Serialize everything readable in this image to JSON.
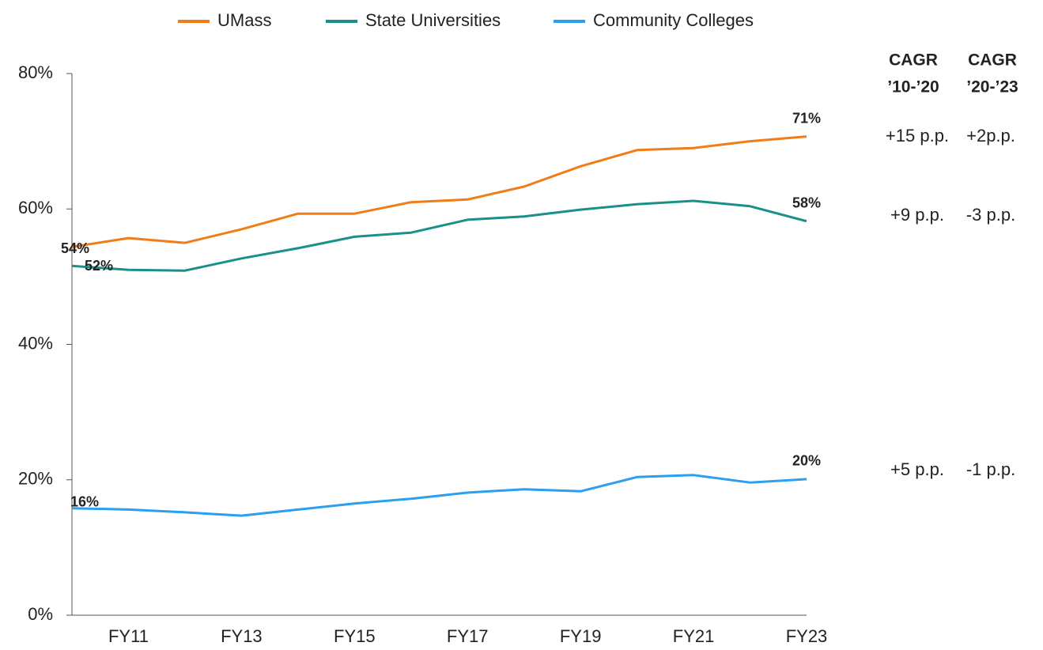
{
  "chart_data": {
    "type": "line",
    "categories": [
      null,
      "FY11",
      null,
      "FY13",
      null,
      "FY15",
      null,
      "FY17",
      null,
      "FY19",
      null,
      "FY21",
      null,
      "FY23"
    ],
    "series": [
      {
        "name": "UMass",
        "color": "#f07d18",
        "values": [
          54.4,
          55.7,
          55.0,
          57.0,
          59.3,
          59.3,
          61.0,
          61.4,
          63.3,
          66.3,
          68.7,
          69.0,
          70.0,
          70.7
        ],
        "value_labels": [
          "54%",
          null,
          null,
          null,
          null,
          null,
          null,
          null,
          null,
          null,
          null,
          null,
          null,
          "71%"
        ]
      },
      {
        "name": "State Universities",
        "color": "#1a9088",
        "values": [
          51.6,
          51.0,
          50.9,
          52.7,
          54.2,
          55.9,
          56.5,
          58.4,
          58.9,
          59.9,
          60.7,
          61.2,
          60.4,
          58.2
        ],
        "value_labels": [
          "52%",
          null,
          null,
          null,
          null,
          null,
          null,
          null,
          null,
          null,
          null,
          null,
          null,
          "58%"
        ]
      },
      {
        "name": "Community Colleges",
        "color": "#2b9ff0",
        "values": [
          15.8,
          15.6,
          15.2,
          14.7,
          15.6,
          16.5,
          17.2,
          18.1,
          18.6,
          18.3,
          20.4,
          20.7,
          19.6,
          20.1
        ],
        "value_labels": [
          "16%",
          null,
          null,
          null,
          null,
          null,
          null,
          null,
          null,
          null,
          null,
          null,
          null,
          "20%"
        ]
      }
    ],
    "ylim": [
      0,
      80
    ],
    "yticks": [
      {
        "value": 0,
        "label": "0%"
      },
      {
        "value": 20,
        "label": "20%"
      },
      {
        "value": 40,
        "label": "40%"
      },
      {
        "value": 60,
        "label": "60%"
      },
      {
        "value": 80,
        "label": "80%"
      }
    ],
    "grid": false,
    "legend": "top",
    "cagr": {
      "headers": [
        [
          "CAGR",
          "’10-’20"
        ],
        [
          "CAGR",
          "’20-’23"
        ]
      ],
      "rows": [
        [
          "+15 p.p.",
          "+2p.p."
        ],
        [
          "+9 p.p.",
          "-3 p.p."
        ],
        [
          "+5 p.p.",
          "-1 p.p."
        ]
      ]
    }
  }
}
